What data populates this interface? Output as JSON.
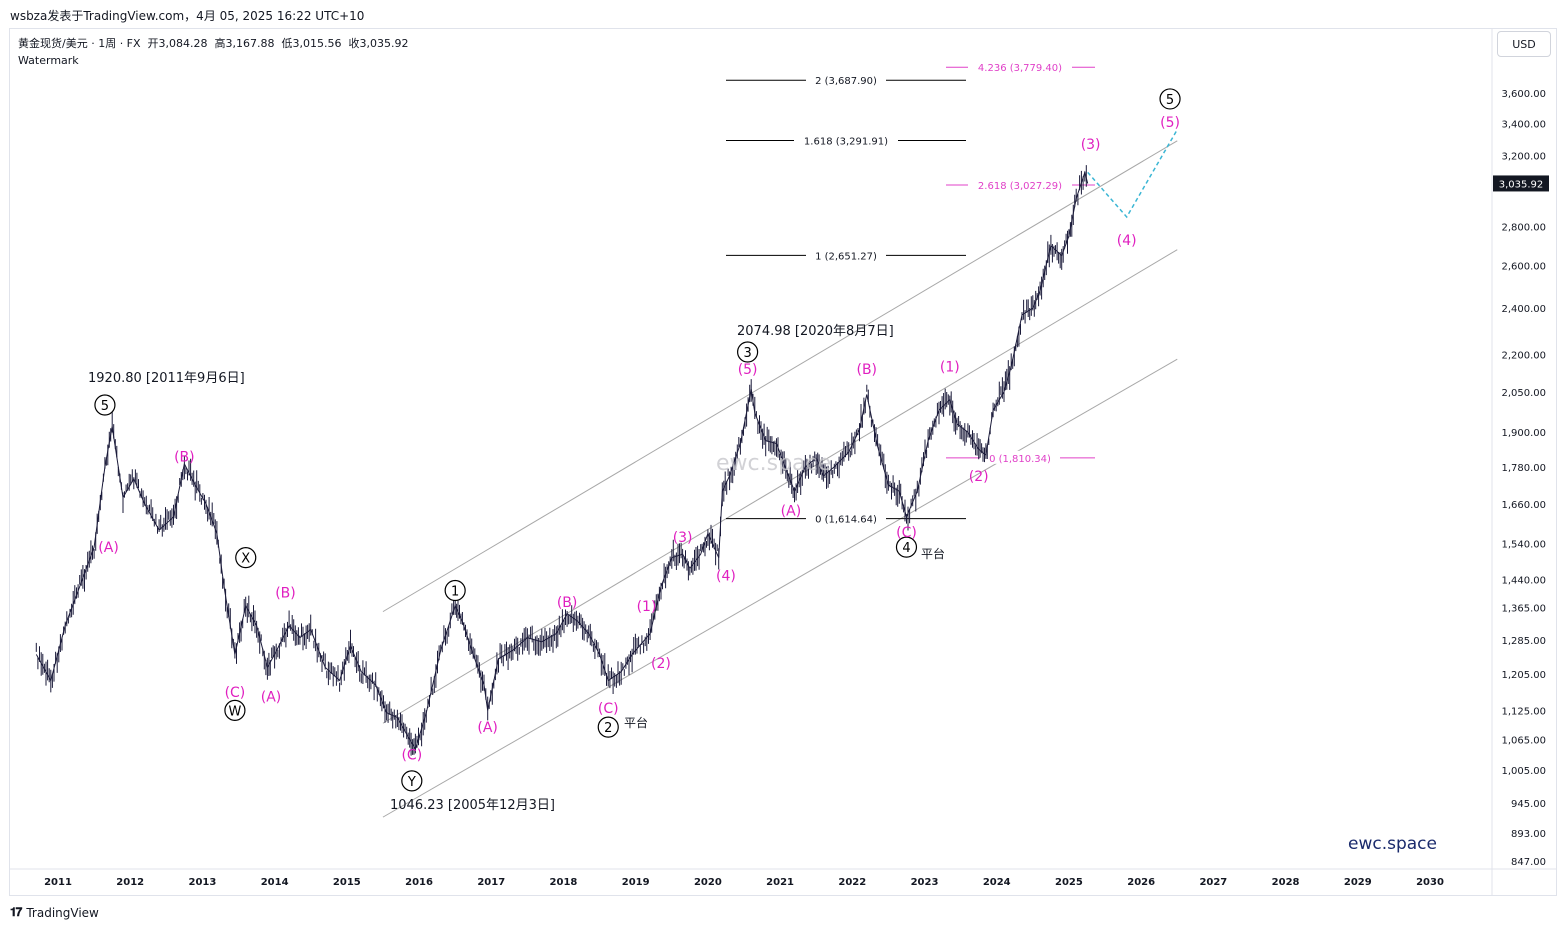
{
  "header": {
    "title": "wsbza发表于TradingView.com，4月 05, 2025 16:22 UTC+10"
  },
  "legend": {
    "symbol": "黄金现货/美元 · 1周 · FX",
    "open_label": "开",
    "open": "3,084.28",
    "high_label": "高",
    "high": "3,167.88",
    "low_label": "低",
    "low": "3,015.56",
    "close_label": "收",
    "close": "3,035.92",
    "watermark": "Watermark"
  },
  "currency": "USD",
  "footer": {
    "brand": "TradingView"
  },
  "chart_data": {
    "type": "line",
    "scale": "log",
    "x_ticks": [
      "2011",
      "2012",
      "2013",
      "2014",
      "2015",
      "2016",
      "2017",
      "2018",
      "2019",
      "2020",
      "2021",
      "2022",
      "2023",
      "2024",
      "2025",
      "2026",
      "2027",
      "2028",
      "2029",
      "2030"
    ],
    "y_ticks": [
      "3,600.00",
      "3,400.00",
      "3,200.00",
      "2,800.00",
      "2,600.00",
      "2,400.00",
      "2,200.00",
      "2,050.00",
      "1,900.00",
      "1,780.00",
      "1,660.00",
      "1,540.00",
      "1,440.00",
      "1,365.00",
      "1,285.00",
      "1,205.00",
      "1,125.00",
      "1,065.00",
      "1,005.00",
      "945.00",
      "893.00",
      "847.00"
    ],
    "y_values": [
      3600,
      3400,
      3200,
      2800,
      2600,
      2400,
      2200,
      2050,
      1900,
      1780,
      1660,
      1540,
      1440,
      1365,
      1285,
      1205,
      1125,
      1065,
      1005,
      945,
      893,
      847
    ],
    "last_price": "3,035.92",
    "series": [
      {
        "x": [
          2010.7,
          2010.9,
          2011.1,
          2011.3,
          2011.5,
          2011.65,
          2011.75,
          2011.9,
          2012.05,
          2012.2,
          2012.4,
          2012.6,
          2012.75,
          2012.9,
          2013.05,
          2013.2,
          2013.3,
          2013.45,
          2013.6,
          2013.75,
          2013.9,
          2014.0,
          2014.2,
          2014.35,
          2014.5,
          2014.7,
          2014.9,
          2015.05,
          2015.2,
          2015.4,
          2015.55,
          2015.7,
          2015.85,
          2015.95,
          2016.1,
          2016.3,
          2016.5,
          2016.6,
          2016.75,
          2016.9,
          2016.95,
          2017.1,
          2017.3,
          2017.5,
          2017.7,
          2017.9,
          2018.05,
          2018.2,
          2018.35,
          2018.5,
          2018.62,
          2018.8,
          2018.95,
          2019.2,
          2019.35,
          2019.5,
          2019.65,
          2019.75,
          2019.9,
          2020.0,
          2020.15,
          2020.2,
          2020.3,
          2020.45,
          2020.6,
          2020.65,
          2020.8,
          2020.95,
          2021.1,
          2021.2,
          2021.35,
          2021.5,
          2021.6,
          2021.75,
          2021.95,
          2022.1,
          2022.2,
          2022.35,
          2022.5,
          2022.65,
          2022.75,
          2022.9,
          2023.05,
          2023.2,
          2023.35,
          2023.45,
          2023.6,
          2023.75,
          2023.85,
          2023.95,
          2024.1,
          2024.2,
          2024.35,
          2024.5,
          2024.6,
          2024.75,
          2024.9,
          2025.0,
          2025.1,
          2025.22,
          2025.26
        ],
        "y": [
          1250,
          1190,
          1320,
          1420,
          1530,
          1780,
          1920,
          1680,
          1740,
          1660,
          1580,
          1620,
          1790,
          1720,
          1660,
          1570,
          1420,
          1250,
          1370,
          1320,
          1220,
          1250,
          1320,
          1290,
          1310,
          1220,
          1190,
          1270,
          1210,
          1180,
          1120,
          1110,
          1070,
          1046,
          1120,
          1260,
          1370,
          1330,
          1250,
          1180,
          1125,
          1240,
          1260,
          1290,
          1280,
          1300,
          1350,
          1330,
          1300,
          1250,
          1190,
          1210,
          1250,
          1300,
          1420,
          1500,
          1510,
          1470,
          1510,
          1570,
          1500,
          1700,
          1750,
          1860,
          2060,
          1970,
          1870,
          1860,
          1760,
          1700,
          1780,
          1810,
          1750,
          1780,
          1830,
          1910,
          2040,
          1850,
          1720,
          1700,
          1620,
          1700,
          1870,
          1980,
          2020,
          1930,
          1900,
          1840,
          1820,
          1980,
          2050,
          2150,
          2370,
          2400,
          2480,
          2700,
          2650,
          2750,
          2950,
          3100,
          3035.92
        ]
      }
    ],
    "channel": [
      {
        "x": [
          2015.5,
          2026.5
        ],
        "y": [
          1355,
          3290
        ]
      },
      {
        "x": [
          2015.5,
          2026.5
        ],
        "y": [
          1098,
          2680
        ]
      },
      {
        "x": [
          2015.5,
          2026.5
        ],
        "y": [
          920,
          2180
        ]
      }
    ],
    "projection": {
      "x": [
        2025.26,
        2025.8,
        2026.5
      ],
      "y": [
        3100,
        2850,
        3360
      ]
    },
    "fib_levels_black": [
      {
        "label": "2 (3,687.90)",
        "value": 3687.9
      },
      {
        "label": "1.618 (3,291.91)",
        "value": 3291.91
      },
      {
        "label": "1 (2,651.27)",
        "value": 2651.27
      },
      {
        "label": "0 (1,614.64)",
        "value": 1614.64
      }
    ],
    "fib_levels_magenta": [
      {
        "label": "4.236 (3,779.40)",
        "value": 3779.4
      },
      {
        "label": "2.618 (3,027.29)",
        "value": 3027.29
      },
      {
        "label": "0 (1,810.34)",
        "value": 1810.34
      }
    ],
    "annotations": {
      "high_2011": "1920.80 [2011年9月6日]",
      "high_2020": "2074.98 [2020年8月7日]",
      "low_2015": "1046.23 [2005年12月3日]",
      "flat": "平台"
    },
    "wave_labels_black": [
      {
        "text": "5",
        "x": 2011.65,
        "y": 2000
      },
      {
        "text": "X",
        "x": 2013.6,
        "y": 1500
      },
      {
        "text": "W",
        "x": 2013.45,
        "y": 1125
      },
      {
        "text": "Y",
        "x": 2015.9,
        "y": 985
      },
      {
        "text": "1",
        "x": 2016.5,
        "y": 1410
      },
      {
        "text": "2",
        "x": 2018.62,
        "y": 1090
      },
      {
        "text": "3",
        "x": 2020.55,
        "y": 2210
      },
      {
        "text": "4",
        "x": 2022.75,
        "y": 1530
      },
      {
        "text": "5",
        "x": 2026.4,
        "y": 3560
      }
    ],
    "wave_labels_magenta": [
      {
        "text": "(A)",
        "x": 2011.7,
        "y": 1530
      },
      {
        "text": "(B)",
        "x": 2012.75,
        "y": 1815
      },
      {
        "text": "(C)",
        "x": 2013.45,
        "y": 1165
      },
      {
        "text": "(A)",
        "x": 2013.95,
        "y": 1155
      },
      {
        "text": "(B)",
        "x": 2014.15,
        "y": 1405
      },
      {
        "text": "(C)",
        "x": 2015.9,
        "y": 1035
      },
      {
        "text": "(A)",
        "x": 2016.95,
        "y": 1090
      },
      {
        "text": "(B)",
        "x": 2018.05,
        "y": 1380
      },
      {
        "text": "(C)",
        "x": 2018.62,
        "y": 1130
      },
      {
        "text": "(1)",
        "x": 2019.15,
        "y": 1370
      },
      {
        "text": "(2)",
        "x": 2019.35,
        "y": 1230
      },
      {
        "text": "(3)",
        "x": 2019.65,
        "y": 1560
      },
      {
        "text": "(4)",
        "x": 2020.25,
        "y": 1450
      },
      {
        "text": "(5)",
        "x": 2020.55,
        "y": 2140
      },
      {
        "text": "(A)",
        "x": 2021.15,
        "y": 1640
      },
      {
        "text": "(B)",
        "x": 2022.2,
        "y": 2140
      },
      {
        "text": "(C)",
        "x": 2022.75,
        "y": 1575
      },
      {
        "text": "(1)",
        "x": 2023.35,
        "y": 2150
      },
      {
        "text": "(2)",
        "x": 2023.75,
        "y": 1750
      },
      {
        "text": "(3)",
        "x": 2025.3,
        "y": 3270
      },
      {
        "text": "(4)",
        "x": 2025.8,
        "y": 2730
      },
      {
        "text": "(5)",
        "x": 2026.4,
        "y": 3410
      }
    ],
    "watermark_center": "ewc.space",
    "brand_text": "ewc.space"
  }
}
